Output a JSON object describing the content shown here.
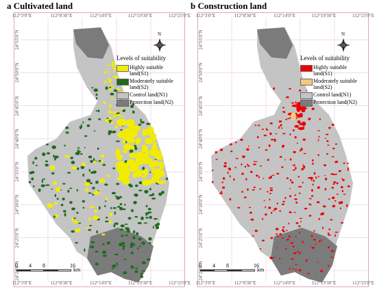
{
  "panels": [
    {
      "title": "a Cultivated land",
      "legend": {
        "title": "Levels of suitability",
        "items": [
          {
            "label": "Highly suitable land(S1)",
            "color": "#f2ec00"
          },
          {
            "label": "Moderately suitable land(S2)",
            "color": "#1f6b1f"
          },
          {
            "label": "Control land(N1)",
            "color": "#c4c4c4"
          },
          {
            "label": "Protection land(N2)",
            "color": "#7b7b7b"
          }
        ]
      }
    },
    {
      "title": "b Construction land",
      "legend": {
        "title": "Levels of suitability",
        "items": [
          {
            "label": "Highly suitable land(S1)",
            "color": "#ee0000"
          },
          {
            "label": "Moderately suitable land(S2)",
            "color": "#f5c97a"
          },
          {
            "label": "Control land(N1)",
            "color": "#c4c4c4"
          },
          {
            "label": "Protection land(N2)",
            "color": "#7b7b7b"
          }
        ]
      }
    }
  ],
  "longitudes": [
    "112°3'0\"E",
    "112°8'30\"E",
    "112°14'0\"E",
    "112°19'30\"E",
    "112°25'0\"E"
  ],
  "latitudes": [
    "24°55'0\"N",
    "24°50'0\"N",
    "24°45'0\"N",
    "24°40'0\"N",
    "24°35'0\"N",
    "24°30'0\"N",
    "24°25'0\"N",
    "24°20'0\"N"
  ],
  "scale": {
    "ticks": [
      "0",
      "4",
      "8",
      "16"
    ],
    "unit": "km"
  },
  "north": "N"
}
